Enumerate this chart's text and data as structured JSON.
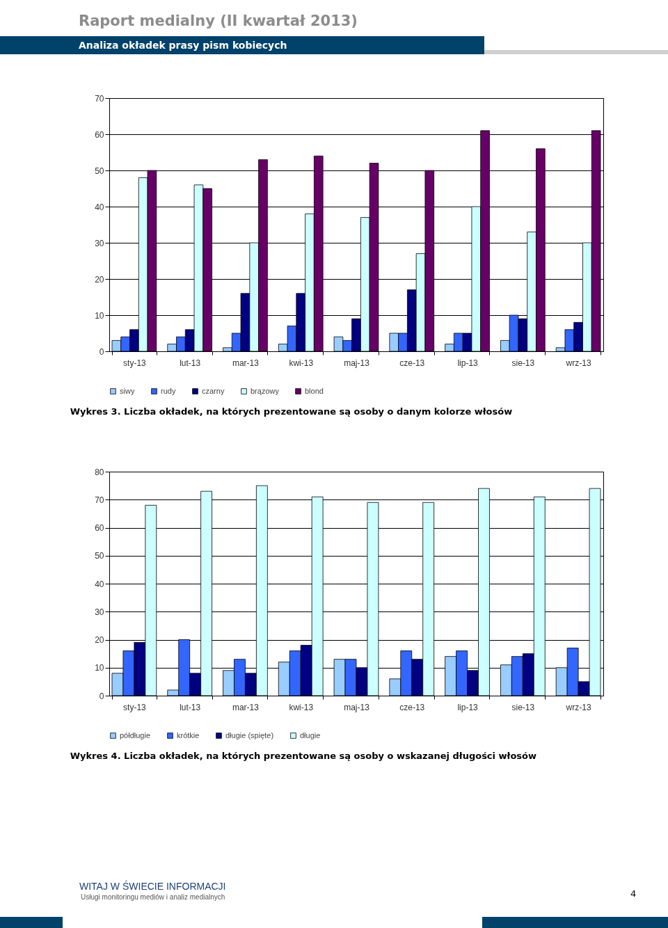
{
  "chart_data": [
    {
      "type": "bar",
      "title": "Wykres 3. Liczba okładek, na których prezentowane są osoby o danym kolorze włosów",
      "annotations": [
        "Raport medialny (II kwartał 2013)",
        "Analiza okładek prasy pism kobiecych"
      ],
      "categories": [
        "sty-13",
        "lut-13",
        "mar-13",
        "kwi-13",
        "maj-13",
        "cze-13",
        "lip-13",
        "sie-13",
        "wrz-13"
      ],
      "series": [
        {
          "name": "siwy",
          "color": "#99ccff",
          "values": [
            3,
            2,
            1,
            2,
            4,
            5,
            2,
            3,
            1
          ]
        },
        {
          "name": "rudy",
          "color": "#3366ff",
          "values": [
            4,
            4,
            5,
            7,
            3,
            5,
            5,
            10,
            6
          ]
        },
        {
          "name": "czarny",
          "color": "#000080",
          "values": [
            6,
            6,
            16,
            16,
            9,
            17,
            5,
            9,
            8
          ]
        },
        {
          "name": "brązowy",
          "color": "#ccffff",
          "values": [
            48,
            46,
            30,
            38,
            37,
            27,
            40,
            33,
            30
          ]
        },
        {
          "name": "blond",
          "color": "#660066",
          "values": [
            50,
            45,
            53,
            54,
            52,
            50,
            61,
            56,
            61
          ]
        }
      ],
      "ylim": [
        0,
        70
      ],
      "yticks": [
        0,
        10,
        20,
        30,
        40,
        50,
        60,
        70
      ],
      "grid": "y",
      "legend": "bottom"
    },
    {
      "type": "bar",
      "title": "Wykres 4. Liczba okładek, na których prezentowane są osoby o wskazanej długości włosów",
      "annotations": [
        "WITAJ W ŚWIECIE INFORMACJI",
        "Usługi monitoringu mediów i analiz medialnych",
        "4"
      ],
      "categories": [
        "sty-13",
        "lut-13",
        "mar-13",
        "kwi-13",
        "maj-13",
        "cze-13",
        "lip-13",
        "sie-13",
        "wrz-13"
      ],
      "series": [
        {
          "name": "półdługie",
          "color": "#99ccff",
          "values": [
            8,
            2,
            9,
            12,
            13,
            6,
            14,
            11,
            10
          ]
        },
        {
          "name": "krótkie",
          "color": "#3366ff",
          "values": [
            16,
            20,
            13,
            16,
            13,
            16,
            16,
            14,
            17
          ]
        },
        {
          "name": "długie (spięte)",
          "color": "#000080",
          "values": [
            19,
            8,
            8,
            18,
            10,
            13,
            9,
            15,
            5
          ]
        },
        {
          "name": "długie",
          "color": "#ccffff",
          "values": [
            68,
            73,
            75,
            71,
            69,
            69,
            74,
            71,
            74
          ]
        }
      ],
      "ylim": [
        0,
        80
      ],
      "yticks": [
        0,
        10,
        20,
        30,
        40,
        50,
        60,
        70,
        80
      ],
      "grid": "y",
      "legend": "bottom"
    }
  ]
}
